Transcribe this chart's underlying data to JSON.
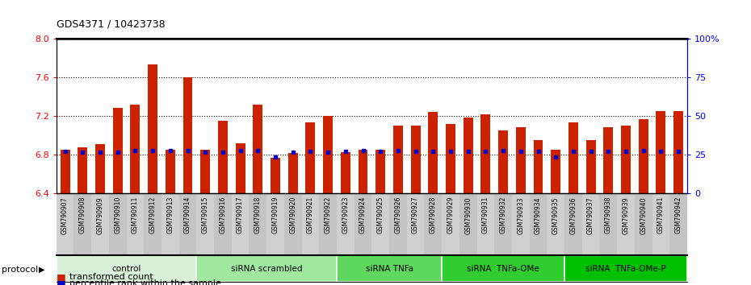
{
  "title": "GDS4371 / 10423738",
  "samples": [
    "GSM790907",
    "GSM790908",
    "GSM790909",
    "GSM790910",
    "GSM790911",
    "GSM790912",
    "GSM790913",
    "GSM790914",
    "GSM790915",
    "GSM790916",
    "GSM790917",
    "GSM790918",
    "GSM790919",
    "GSM790920",
    "GSM790921",
    "GSM790922",
    "GSM790923",
    "GSM790924",
    "GSM790925",
    "GSM790926",
    "GSM790927",
    "GSM790928",
    "GSM790929",
    "GSM790930",
    "GSM790931",
    "GSM790932",
    "GSM790933",
    "GSM790934",
    "GSM790935",
    "GSM790936",
    "GSM790937",
    "GSM790938",
    "GSM790939",
    "GSM790940",
    "GSM790941",
    "GSM790942"
  ],
  "bar_tops": [
    6.85,
    6.88,
    6.91,
    7.28,
    7.32,
    7.73,
    6.85,
    7.6,
    6.85,
    7.15,
    6.92,
    7.32,
    6.77,
    6.82,
    7.13,
    7.2,
    6.83,
    6.85,
    6.85,
    7.1,
    7.1,
    7.24,
    7.12,
    7.18,
    7.22,
    7.05,
    7.08,
    6.95,
    6.85,
    7.13,
    6.95,
    7.08,
    7.1,
    7.17,
    7.25,
    7.25
  ],
  "percentile_y": [
    6.835,
    6.822,
    6.822,
    6.822,
    6.84,
    6.843,
    6.843,
    6.843,
    6.83,
    6.822,
    6.843,
    6.843,
    6.775,
    6.822,
    6.835,
    6.822,
    6.832,
    6.843,
    6.832,
    6.843,
    6.835,
    6.835,
    6.835,
    6.835,
    6.832,
    6.843,
    6.835,
    6.832,
    6.775,
    6.832,
    6.835,
    6.835,
    6.835,
    6.843,
    6.832,
    6.835
  ],
  "groups": [
    {
      "label": "control",
      "start": 0,
      "end": 8,
      "color": "#d8f0d8"
    },
    {
      "label": "siRNA scrambled",
      "start": 8,
      "end": 16,
      "color": "#a0e8a0"
    },
    {
      "label": "siRNA TNFa",
      "start": 16,
      "end": 22,
      "color": "#60d860"
    },
    {
      "label": "siRNA  TNFa-OMe",
      "start": 22,
      "end": 29,
      "color": "#30cc30"
    },
    {
      "label": "siRNA  TNFa-OMe-P",
      "start": 29,
      "end": 36,
      "color": "#00c000"
    }
  ],
  "ymin": 6.4,
  "ymax": 8.0,
  "bar_color": "#cc2200",
  "dot_color": "#0000cc",
  "left_yticks": [
    6.4,
    6.8,
    7.2,
    7.6,
    8.0
  ],
  "right_ytick_vals": [
    0,
    25,
    50,
    75,
    100
  ],
  "right_ytick_labels": [
    "0",
    "25",
    "50",
    "75",
    "100%"
  ],
  "dotted_lines": [
    6.8,
    7.2,
    7.6
  ],
  "legend_transformed": "transformed count",
  "legend_percentile": "percentile rank within the sample",
  "protocol_label": "protocol",
  "xtick_bg": "#d0d0d0"
}
